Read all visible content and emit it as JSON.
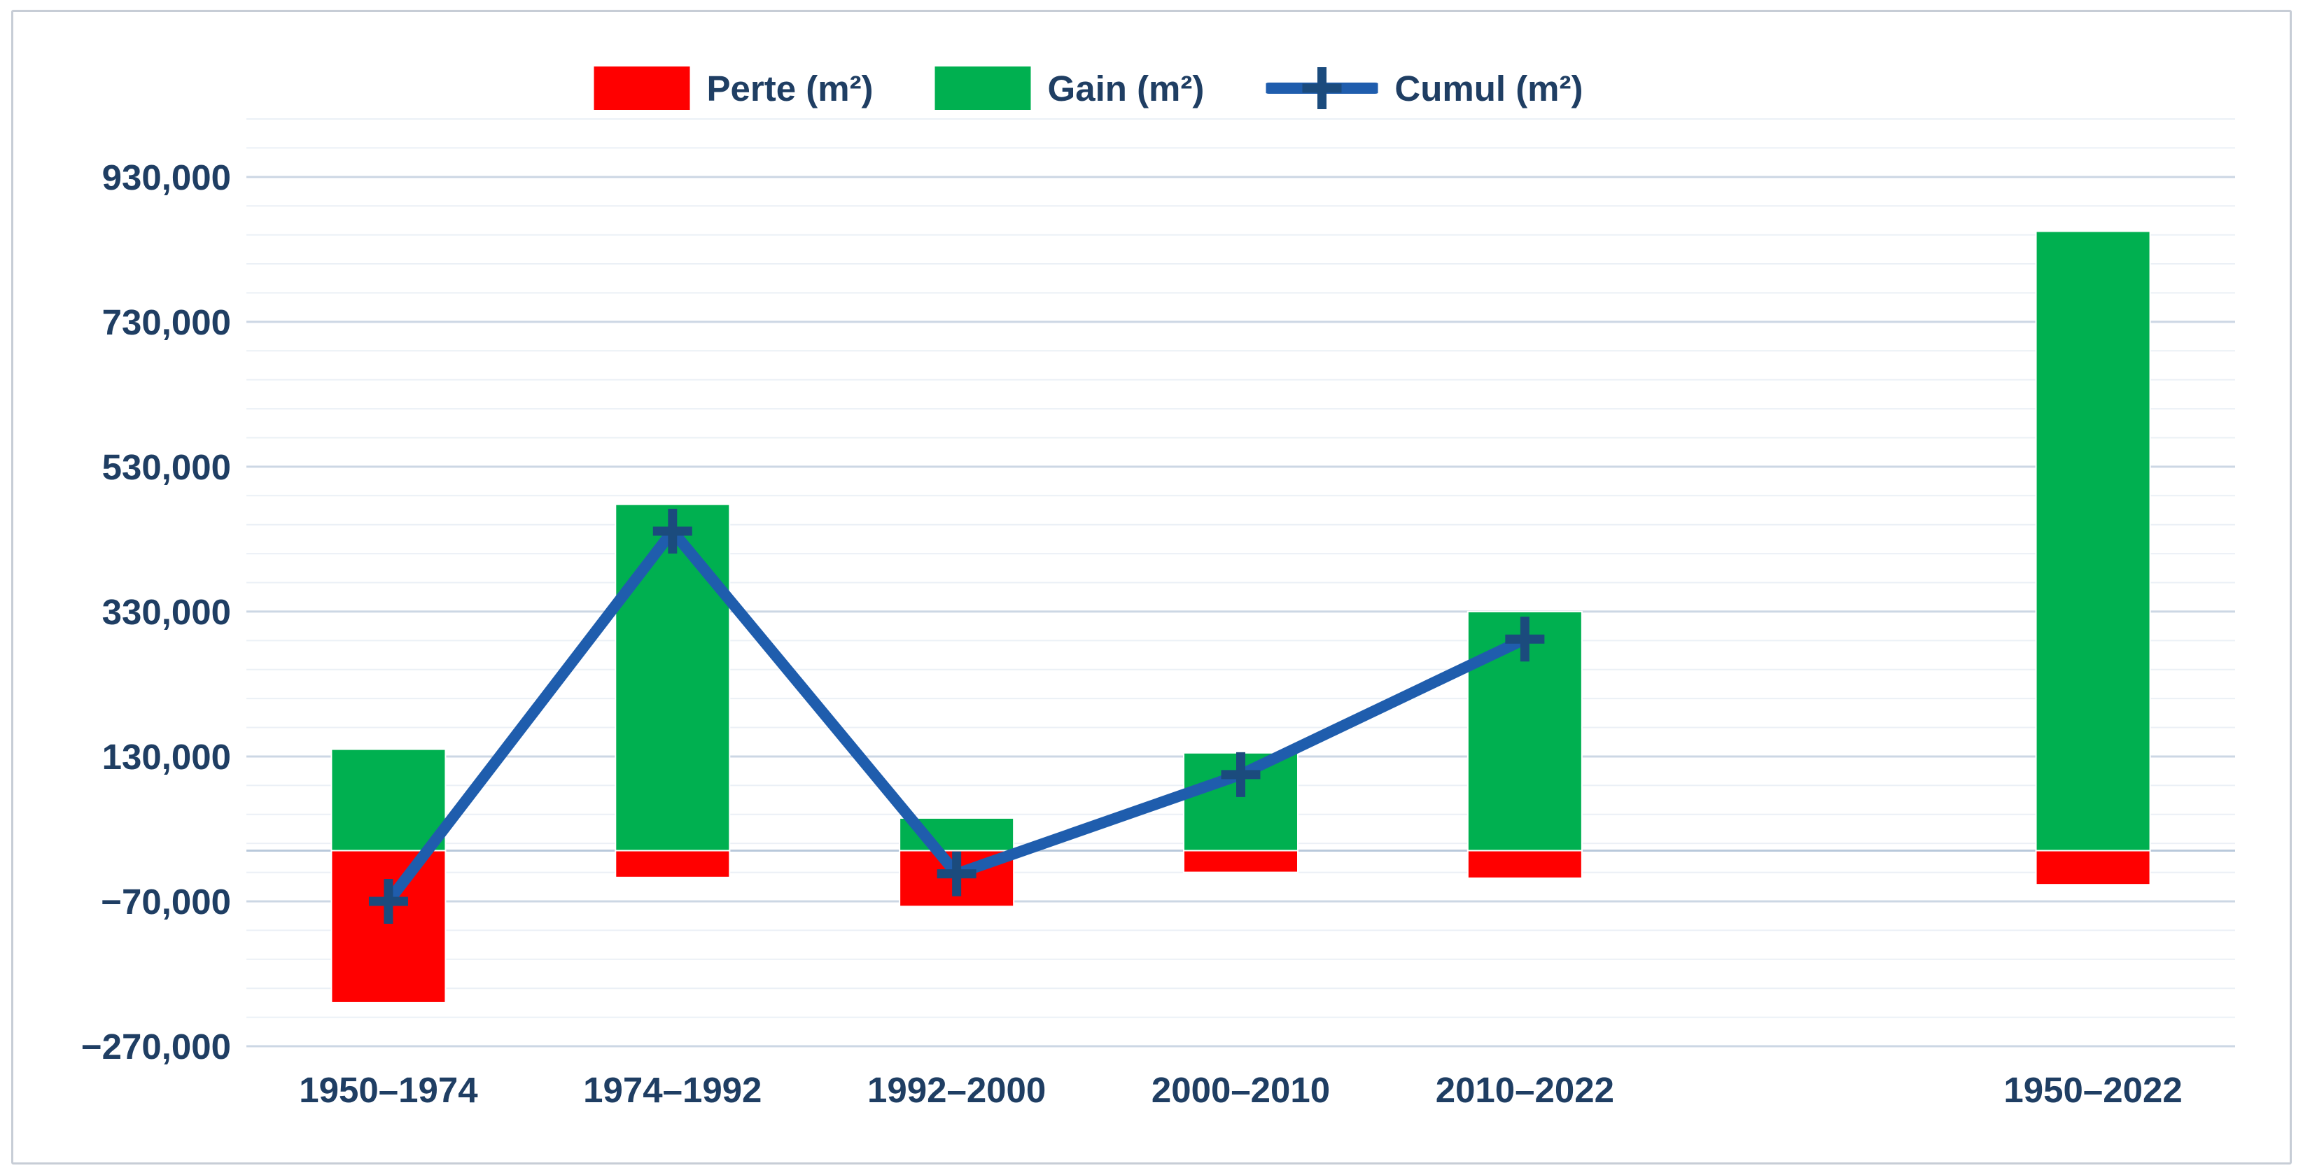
{
  "legend": {
    "items": [
      {
        "label": "Perte (m²)",
        "color": "#ff0000",
        "type": "bar"
      },
      {
        "label": "Gain (m²)",
        "color": "#00b050",
        "type": "bar"
      },
      {
        "label": "Cumul (m²)",
        "color": "#1f5dad",
        "type": "line"
      }
    ]
  },
  "chart_data": {
    "type": "bar",
    "subtype": "combo-bar-line",
    "categories": [
      "1950–1974",
      "1974–1992",
      "1992–2000",
      "2000–2010",
      "2010–2022",
      "",
      "1950–2022"
    ],
    "series": [
      {
        "name": "Perte (m²)",
        "type": "bar",
        "color": "#ff0000",
        "values": [
          -210000,
          -37000,
          -77000,
          -30000,
          -38000,
          null,
          -47000
        ]
      },
      {
        "name": "Gain (m²)",
        "type": "bar",
        "color": "#00b050",
        "values": [
          140000,
          478000,
          45000,
          135000,
          330000,
          null,
          855000
        ]
      },
      {
        "name": "Cumul (m²)",
        "type": "line",
        "color": "#1f5dad",
        "marker": "plus",
        "marker_color": "#1b4b7d",
        "values": [
          -70000,
          441000,
          -32000,
          105000,
          292000,
          null,
          null
        ]
      }
    ],
    "title": "",
    "xlabel": "",
    "ylabel": "",
    "y_axis": {
      "min": -270000,
      "max": 1010000,
      "major_step": 200000,
      "minor_step": 40000,
      "tick_values": [
        930000,
        730000,
        530000,
        330000,
        130000,
        -70000,
        -270000
      ],
      "tick_labels": [
        "930,000",
        "730,000",
        "530,000",
        "330,000",
        "130,000",
        "−70,000",
        "−270,000"
      ],
      "grid": true
    },
    "x_axis": {
      "tick_labels": [
        "1950–1974",
        "1974–1992",
        "1992–2000",
        "2000–2010",
        "2010–2022",
        "",
        "1950–2022"
      ]
    },
    "legend_position": "top-center",
    "colors": {
      "text": "#1f3e63",
      "grid_minor": "#ebf0f6",
      "grid_major": "#ccd7e4",
      "zero_axis": "#b9c9db",
      "bar_stroke": "#ffffff",
      "frame_border": "#c7cdd6"
    }
  }
}
